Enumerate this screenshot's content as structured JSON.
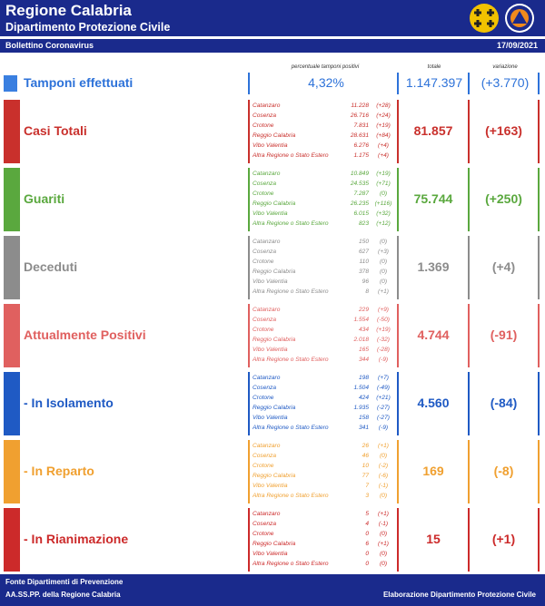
{
  "header": {
    "title": "Regione Calabria",
    "subtitle": "Dipartimento Protezione Civile",
    "bulletin": "Bollettino Coronavirus",
    "date": "17/09/2021"
  },
  "columns": {
    "pct": "percentuale tamponi positivi",
    "total": "totale",
    "variation": "variazione"
  },
  "tamponi": {
    "label": "Tamponi effettuati",
    "pct": "4,32%",
    "total": "1.147.397",
    "variation": "(+3.770)",
    "color": "#2d72d9"
  },
  "sections": [
    {
      "label": "Casi Totali",
      "total": "81.857",
      "variation": "(+163)",
      "color": "#c9302c",
      "rows": [
        {
          "p": "Catanzaro",
          "v": "11.228",
          "d": "(+28)"
        },
        {
          "p": "Cosenza",
          "v": "26.716",
          "d": "(+24)"
        },
        {
          "p": "Crotone",
          "v": "7.831",
          "d": "(+19)"
        },
        {
          "p": "Reggio Calabria",
          "v": "28.631",
          "d": "(+84)"
        },
        {
          "p": "Vibo Valentia",
          "v": "6.276",
          "d": "(+4)"
        },
        {
          "p": "Altra Regione o Stato Estero",
          "v": "1.175",
          "d": "(+4)"
        }
      ]
    },
    {
      "label": "Guariti",
      "total": "75.744",
      "variation": "(+250)",
      "color": "#5aa83e",
      "rows": [
        {
          "p": "Catanzaro",
          "v": "10.849",
          "d": "(+19)"
        },
        {
          "p": "Cosenza",
          "v": "24.535",
          "d": "(+71)"
        },
        {
          "p": "Crotone",
          "v": "7.287",
          "d": "(0)"
        },
        {
          "p": "Reggio Calabria",
          "v": "26.235",
          "d": "(+116)"
        },
        {
          "p": "Vibo Valentia",
          "v": "6.015",
          "d": "(+32)"
        },
        {
          "p": "Altra Regione o Stato Estero",
          "v": "823",
          "d": "(+12)"
        }
      ]
    },
    {
      "label": "Deceduti",
      "total": "1.369",
      "variation": "(+4)",
      "color": "#8c8c8c",
      "rows": [
        {
          "p": "Catanzaro",
          "v": "150",
          "d": "(0)"
        },
        {
          "p": "Cosenza",
          "v": "627",
          "d": "(+3)"
        },
        {
          "p": "Crotone",
          "v": "110",
          "d": "(0)"
        },
        {
          "p": "Reggio Calabria",
          "v": "378",
          "d": "(0)"
        },
        {
          "p": "Vibo Valentia",
          "v": "96",
          "d": "(0)"
        },
        {
          "p": "Altra Regione o Stato Estero",
          "v": "8",
          "d": "(+1)"
        }
      ]
    },
    {
      "label": "Attualmente Positivi",
      "total": "4.744",
      "variation": "(-91)",
      "color": "#e0605f",
      "rows": [
        {
          "p": "Catanzaro",
          "v": "229",
          "d": "(+9)"
        },
        {
          "p": "Cosenza",
          "v": "1.554",
          "d": "(-50)"
        },
        {
          "p": "Crotone",
          "v": "434",
          "d": "(+19)"
        },
        {
          "p": "Reggio Calabria",
          "v": "2.018",
          "d": "(-32)"
        },
        {
          "p": "Vibo Valentia",
          "v": "165",
          "d": "(-28)"
        },
        {
          "p": "Altra Regione o Stato Estero",
          "v": "344",
          "d": "(-9)"
        }
      ]
    },
    {
      "label": " - In Isolamento",
      "total": "4.560",
      "variation": "(-84)",
      "color": "#1f5ac4",
      "rows": [
        {
          "p": "Catanzaro",
          "v": "198",
          "d": "(+7)"
        },
        {
          "p": "Cosenza",
          "v": "1.504",
          "d": "(-49)"
        },
        {
          "p": "Crotone",
          "v": "424",
          "d": "(+21)"
        },
        {
          "p": "Reggio Calabria",
          "v": "1.935",
          "d": "(-27)"
        },
        {
          "p": "Vibo Valentia",
          "v": "158",
          "d": "(-27)"
        },
        {
          "p": "Altra Regione o Stato Estero",
          "v": "341",
          "d": "(-9)"
        }
      ]
    },
    {
      "label": " - In Reparto",
      "total": "169",
      "variation": "(-8)",
      "color": "#f0a030",
      "rows": [
        {
          "p": "Catanzaro",
          "v": "26",
          "d": "(+1)"
        },
        {
          "p": "Cosenza",
          "v": "46",
          "d": "(0)"
        },
        {
          "p": "Crotone",
          "v": "10",
          "d": "(-2)"
        },
        {
          "p": "Reggio Calabria",
          "v": "77",
          "d": "(-6)"
        },
        {
          "p": "Vibo Valentia",
          "v": "7",
          "d": "(-1)"
        },
        {
          "p": "Altra Regione o Stato Estero",
          "v": "3",
          "d": "(0)"
        }
      ]
    },
    {
      "label": " - In Rianimazione",
      "total": "15",
      "variation": "(+1)",
      "color": "#cc2a2a",
      "rows": [
        {
          "p": "Catanzaro",
          "v": "5",
          "d": "(+1)"
        },
        {
          "p": "Cosenza",
          "v": "4",
          "d": "(-1)"
        },
        {
          "p": "Crotone",
          "v": "0",
          "d": "(0)"
        },
        {
          "p": "Reggio Calabria",
          "v": "6",
          "d": "(+1)"
        },
        {
          "p": "Vibo Valentia",
          "v": "0",
          "d": "(0)"
        },
        {
          "p": "Altra Regione o Stato Estero",
          "v": "0",
          "d": "(0)"
        }
      ]
    }
  ],
  "footer": {
    "line1": "Fonte Dipartimenti di Prevenzione",
    "line2": "AA.SS.PP.  della Regione Calabria",
    "right": "Elaborazione Dipartimento Protezione Civile"
  }
}
